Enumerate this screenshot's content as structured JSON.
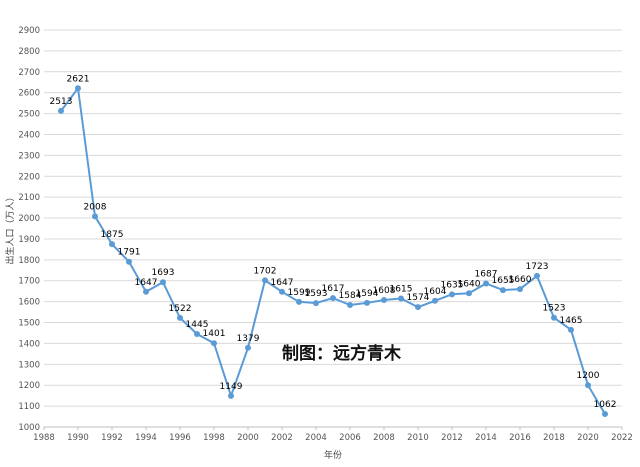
{
  "chart_data": {
    "type": "line",
    "xlabel": "年份",
    "ylabel": "出生人口（万人）",
    "xlim": [
      1988,
      2022
    ],
    "ylim": [
      1000,
      2900
    ],
    "x_ticks": [
      1988,
      1990,
      1992,
      1994,
      1996,
      1998,
      2000,
      2002,
      2004,
      2006,
      2008,
      2010,
      2012,
      2014,
      2016,
      2018,
      2020,
      2022
    ],
    "y_ticks": [
      1000,
      1100,
      1200,
      1300,
      1400,
      1500,
      1600,
      1700,
      1800,
      1900,
      2000,
      2100,
      2200,
      2300,
      2400,
      2500,
      2600,
      2700,
      2800,
      2900
    ],
    "grid": "horizontal",
    "line_color": "#5b9bd5",
    "annotation": "制图：远方青木",
    "points": [
      {
        "x": 1989,
        "y": 2513
      },
      {
        "x": 1990,
        "y": 2621
      },
      {
        "x": 1991,
        "y": 2008
      },
      {
        "x": 1992,
        "y": 1875
      },
      {
        "x": 1993,
        "y": 1791
      },
      {
        "x": 1994,
        "y": 1647
      },
      {
        "x": 1995,
        "y": 1693
      },
      {
        "x": 1996,
        "y": 1522
      },
      {
        "x": 1997,
        "y": 1445
      },
      {
        "x": 1998,
        "y": 1401
      },
      {
        "x": 1999,
        "y": 1149
      },
      {
        "x": 2000,
        "y": 1379
      },
      {
        "x": 2001,
        "y": 1702
      },
      {
        "x": 2002,
        "y": 1647
      },
      {
        "x": 2003,
        "y": 1599
      },
      {
        "x": 2004,
        "y": 1593
      },
      {
        "x": 2005,
        "y": 1617
      },
      {
        "x": 2006,
        "y": 1584
      },
      {
        "x": 2007,
        "y": 1594
      },
      {
        "x": 2008,
        "y": 1608
      },
      {
        "x": 2009,
        "y": 1615
      },
      {
        "x": 2010,
        "y": 1574
      },
      {
        "x": 2011,
        "y": 1604
      },
      {
        "x": 2012,
        "y": 1635
      },
      {
        "x": 2013,
        "y": 1640
      },
      {
        "x": 2014,
        "y": 1687
      },
      {
        "x": 2015,
        "y": 1655
      },
      {
        "x": 2016,
        "y": 1660
      },
      {
        "x": 2017,
        "y": 1723
      },
      {
        "x": 2018,
        "y": 1523
      },
      {
        "x": 2019,
        "y": 1465
      },
      {
        "x": 2020,
        "y": 1200
      },
      {
        "x": 2021,
        "y": 1062
      }
    ]
  }
}
